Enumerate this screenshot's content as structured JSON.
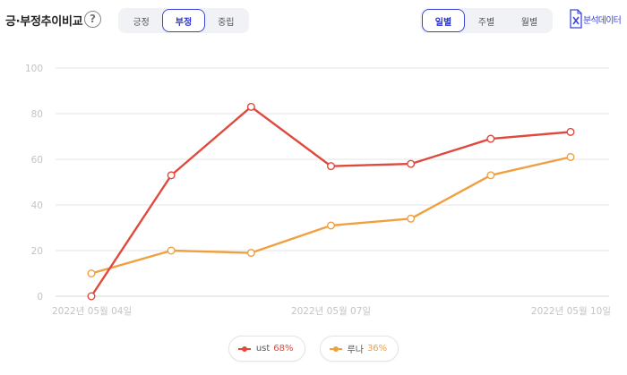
{
  "header": {
    "title": "긍·부정추이비교",
    "help": "?",
    "download_label": "분석데이터",
    "download_icon": "excel-file-icon"
  },
  "sentiment_tabs": [
    {
      "label": "긍정",
      "active": false
    },
    {
      "label": "부정",
      "active": true
    },
    {
      "label": "중립",
      "active": false
    }
  ],
  "period_tabs": [
    {
      "label": "일별",
      "active": true
    },
    {
      "label": "주별",
      "active": false
    },
    {
      "label": "월별",
      "active": false
    }
  ],
  "colors": {
    "accent": "#3d48d6",
    "series_ust": "#e0493d",
    "series_luna": "#f0a040",
    "grid": "#e6e6e6"
  },
  "chart_data": {
    "type": "line",
    "title": "",
    "xlabel": "",
    "ylabel": "",
    "ylim": [
      0,
      100
    ],
    "yticks": [
      0,
      20,
      40,
      60,
      80,
      100
    ],
    "x": [
      "2022-05-04",
      "2022-05-05",
      "2022-05-06",
      "2022-05-07",
      "2022-05-08",
      "2022-05-09",
      "2022-05-10"
    ],
    "xtick_labels": [
      {
        "date": "2022-05-04",
        "label": "2022년 05월 04일"
      },
      {
        "date": "2022-05-07",
        "label": "2022년 05월 07일"
      },
      {
        "date": "2022-05-10",
        "label": "2022년 05월 10일"
      }
    ],
    "grid": true,
    "legend": "bottom-center",
    "series": [
      {
        "name": "ust",
        "percent": "68%",
        "color": "#e0493d",
        "values": [
          0,
          53,
          83,
          57,
          58,
          69,
          72
        ]
      },
      {
        "name": "루나",
        "percent": "36%",
        "color": "#f0a040",
        "values": [
          10,
          20,
          19,
          31,
          34,
          53,
          61
        ]
      }
    ]
  }
}
